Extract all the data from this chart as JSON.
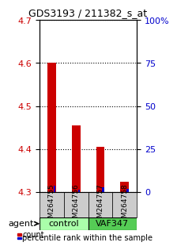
{
  "title": "GDS3193 / 211382_s_at",
  "samples": [
    "GSM264755",
    "GSM264756",
    "GSM264757",
    "GSM264758"
  ],
  "groups": [
    "control",
    "control",
    "VAF347",
    "VAF347"
  ],
  "group_labels": [
    "control",
    "VAF347"
  ],
  "group_colors": [
    "#90EE90",
    "#00CC00"
  ],
  "bar_base": 4.3,
  "red_values": [
    4.6,
    4.455,
    4.405,
    4.325
  ],
  "blue_values": [
    4.315,
    4.305,
    4.312,
    4.308
  ],
  "red_color": "#CC0000",
  "blue_color": "#0000CC",
  "ylim_min": 4.3,
  "ylim_max": 4.7,
  "right_yticks": [
    0,
    25,
    50,
    75,
    100
  ],
  "right_ytick_positions": [
    4.3,
    4.4,
    4.5,
    4.6,
    4.7
  ],
  "left_yticks": [
    4.3,
    4.4,
    4.5,
    4.6,
    4.7
  ],
  "left_color": "#CC0000",
  "right_color": "#0000CC",
  "agent_label": "agent",
  "legend_count": "count",
  "legend_percentile": "percentile rank within the sample",
  "grid_color": "#000000",
  "sample_box_color": "#CCCCCC",
  "control_color": "#AAFFAA",
  "vaf_color": "#55CC55"
}
